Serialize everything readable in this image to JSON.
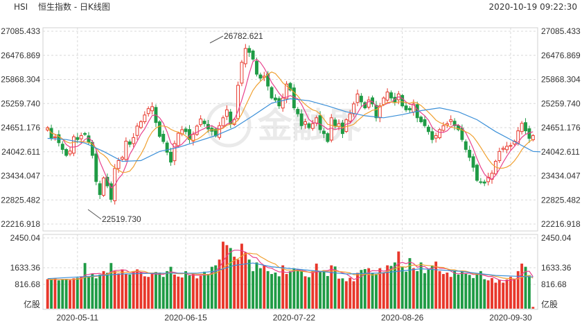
{
  "header": {
    "symbol": "HSI",
    "title": "恒生指数 - 日K线图",
    "timestamp": "2020-10-19 09:22:30"
  },
  "watermark": "金融界",
  "colors": {
    "up": "#e8372b",
    "down": "#1f9b45",
    "ma5": "#e8408c",
    "ma10": "#f0a030",
    "ma20": "#3a8fd8",
    "grid": "#d8d8d8"
  },
  "price_axis": {
    "ticks": [
      "27085.433",
      "26476.869",
      "25868.304",
      "25259.740",
      "24651.176",
      "24042.611",
      "23434.047",
      "22825.482",
      "22216.918"
    ]
  },
  "volume_axis": {
    "ticks": [
      "2450.04",
      "1633.36",
      "816.68"
    ],
    "unit": "亿股"
  },
  "date_axis": {
    "labels": [
      "2020-05-11",
      "2020-06-15",
      "2020-07-22",
      "2020-08-26",
      "2020-09-30"
    ]
  },
  "annotations": {
    "high_label": "26782.621",
    "low_label": "22519.730"
  },
  "chart_data": {
    "type": "candlestick",
    "title": "恒生指数 - 日K线图",
    "price_range": [
      22216.918,
      27085.433
    ],
    "volume_range": [
      0,
      2450.04
    ],
    "high": 26782.621,
    "low": 22519.73,
    "grid": true,
    "moving_averages": [
      "MA5",
      "MA10",
      "MA20"
    ],
    "closes": [
      24650,
      24380,
      24420,
      24270,
      24100,
      23950,
      24060,
      24420,
      24350,
      24450,
      24480,
      24280,
      23950,
      23290,
      22960,
      23380,
      23180,
      22840,
      23620,
      23820,
      23900,
      24310,
      24230,
      24400,
      24690,
      24800,
      24970,
      25130,
      25180,
      24780,
      24430,
      24300,
      24030,
      23780,
      24250,
      24510,
      24600,
      24550,
      24350,
      24480,
      24690,
      24870,
      24750,
      24620,
      24560,
      24440,
      24700,
      24900,
      25100,
      24750,
      24860,
      25720,
      26300,
      26650,
      26550,
      26380,
      26000,
      25900,
      25950,
      25700,
      25400,
      25350,
      25200,
      25400,
      25750,
      25600,
      25150,
      25000,
      24700,
      24800,
      24650,
      24750,
      24900,
      24600,
      24500,
      24300,
      24900,
      24700,
      24750,
      24500,
      24850,
      25000,
      25250,
      25500,
      25300,
      25150,
      25350,
      25250,
      24900,
      25200,
      25400,
      25550,
      25400,
      25300,
      25500,
      25200,
      25100,
      25100,
      25250,
      24900,
      24800,
      24700,
      24550,
      24350,
      24450,
      24600,
      24700,
      24750,
      24850,
      24700,
      24600,
      24350,
      24100,
      23900,
      23650,
      23320,
      23280,
      23250,
      23400,
      23500,
      23800,
      24050,
      24130,
      24180,
      24200,
      24310,
      24570,
      24760,
      24570,
      24380,
      24450
    ],
    "volumes": [
      1020,
      1000,
      1050,
      980,
      1010,
      1030,
      990,
      1050,
      1070,
      1120,
      1580,
      1100,
      1200,
      1050,
      1180,
      1300,
      1240,
      1580,
      1300,
      1220,
      1360,
      1210,
      1180,
      1300,
      1360,
      1260,
      1120,
      1100,
      1230,
      1270,
      1250,
      1100,
      1300,
      1450,
      1180,
      1110,
      1080,
      1300,
      1150,
      1200,
      1050,
      1140,
      1280,
      1200,
      1450,
      1500,
      1700,
      2320,
      2200,
      2100,
      1800,
      1700,
      2250,
      1950,
      1700,
      1300,
      1600,
      1400,
      1500,
      1300,
      1200,
      1250,
      1120,
      1500,
      1200,
      1300,
      1400,
      1360,
      1330,
      1120,
      1090,
      1300,
      1560,
      1290,
      1330,
      1130,
      1500,
      1460,
      1040,
      1050,
      950,
      1070,
      950,
      1240,
      1340,
      1370,
      1400,
      1240,
      1200,
      1400,
      1260,
      1500,
      1480,
      1600,
      1980,
      1450,
      1280,
      1750,
      1400,
      1300,
      1600,
      1230,
      1350,
      1500,
      1630,
      1300,
      1200,
      1250,
      1100,
      1300,
      1180,
      1290,
      1210,
      1170,
      1060,
      1210,
      1300,
      1020,
      980,
      1060,
      900,
      1000,
      900,
      1010,
      1100,
      1020,
      1300,
      1560,
      1450,
      1160,
      60
    ],
    "ma20_points": [
      [
        0,
        24380
      ],
      [
        5,
        24350
      ],
      [
        10,
        24260
      ],
      [
        15,
        24050
      ],
      [
        20,
        23800
      ],
      [
        25,
        23820
      ],
      [
        30,
        24050
      ],
      [
        35,
        24150
      ],
      [
        40,
        24300
      ],
      [
        45,
        24450
      ],
      [
        50,
        24650
      ],
      [
        55,
        24950
      ],
      [
        60,
        25270
      ],
      [
        65,
        25380
      ],
      [
        70,
        25330
      ],
      [
        75,
        25200
      ],
      [
        80,
        25050
      ],
      [
        85,
        24950
      ],
      [
        90,
        24900
      ],
      [
        95,
        24980
      ],
      [
        100,
        25080
      ],
      [
        105,
        25150
      ],
      [
        110,
        25050
      ],
      [
        115,
        24850
      ],
      [
        120,
        24550
      ],
      [
        125,
        24300
      ],
      [
        130,
        24050
      ],
      [
        132,
        24040
      ]
    ],
    "vol_ma_points": [
      [
        0,
        1040
      ],
      [
        10,
        1110
      ],
      [
        20,
        1200
      ],
      [
        30,
        1230
      ],
      [
        40,
        1230
      ],
      [
        45,
        1300
      ],
      [
        50,
        1500
      ],
      [
        55,
        1580
      ],
      [
        60,
        1450
      ],
      [
        70,
        1330
      ],
      [
        80,
        1200
      ],
      [
        90,
        1240
      ],
      [
        100,
        1380
      ],
      [
        110,
        1300
      ],
      [
        120,
        1150
      ],
      [
        130,
        1100
      ]
    ]
  }
}
